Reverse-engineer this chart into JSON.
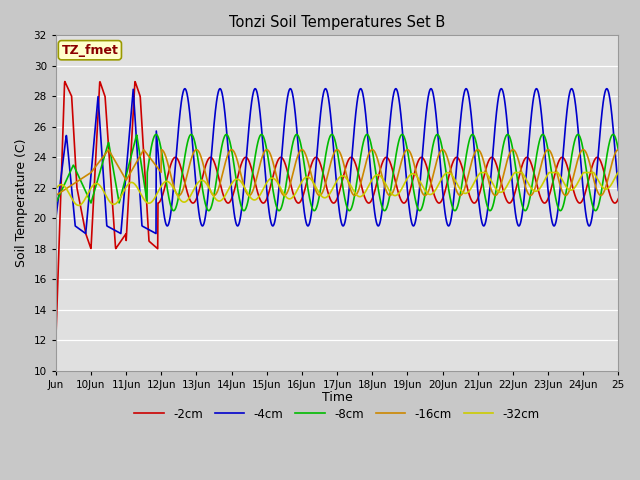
{
  "title": "Tonzi Soil Temperatures Set B",
  "xlabel": "Time",
  "ylabel": "Soil Temperature (C)",
  "ylim": [
    10,
    32
  ],
  "background_color": "#e0e0e0",
  "grid_color": "#ffffff",
  "label_box_text": "TZ_fmet",
  "label_box_bg": "#ffffcc",
  "label_box_fg": "#8b0000",
  "series": {
    "-2cm": {
      "color": "#cc0000"
    },
    "-4cm": {
      "color": "#0000cc"
    },
    "-8cm": {
      "color": "#00bb00"
    },
    "-16cm": {
      "color": "#cc8800"
    },
    "-32cm": {
      "color": "#cccc00"
    }
  },
  "tick_labels": [
    "Jun",
    "10Jun",
    "11Jun",
    "12Jun",
    "13Jun",
    "14Jun",
    "15Jun",
    "16Jun",
    "17Jun",
    "18Jun",
    "19Jun",
    "20Jun",
    "21Jun",
    "22Jun",
    "23Jun",
    "24Jun",
    "25"
  ],
  "tick_positions": [
    9,
    10,
    11,
    12,
    13,
    14,
    15,
    16,
    17,
    18,
    19,
    20,
    21,
    22,
    23,
    24,
    25
  ],
  "figsize": [
    6.4,
    4.8
  ],
  "dpi": 100
}
